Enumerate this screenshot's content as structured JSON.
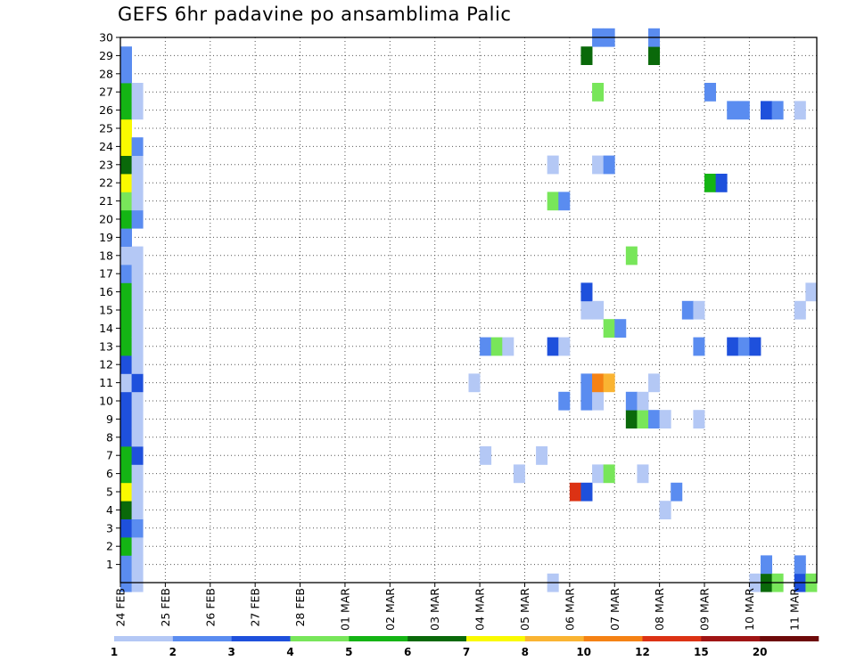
{
  "chart_data": {
    "type": "heatmap",
    "title": "GEFS 6hr padavine po ansamblima Palic",
    "xlabel": "",
    "ylabel": "",
    "x_tick_labels": [
      "24 FEB",
      "25 FEB",
      "26 FEB",
      "27 FEB",
      "28 FEB",
      "01 MAR",
      "02 MAR",
      "03 MAR",
      "04 MAR",
      "05 MAR",
      "06 MAR",
      "07 MAR",
      "08 MAR",
      "09 MAR",
      "10 MAR",
      "11 MAR"
    ],
    "y_tick_labels": [
      "1",
      "2",
      "3",
      "4",
      "5",
      "6",
      "7",
      "8",
      "9",
      "10",
      "11",
      "12",
      "13",
      "14",
      "15",
      "16",
      "17",
      "18",
      "19",
      "20",
      "21",
      "22",
      "23",
      "24",
      "25",
      "26",
      "27",
      "28",
      "29",
      "30"
    ],
    "y_axis_range": [
      0,
      30
    ],
    "time_steps": 62,
    "steps_per_day": 4,
    "members": 31,
    "grid": true,
    "colorbar": {
      "labels": [
        "1",
        "2",
        "3",
        "4",
        "5",
        "6",
        "7",
        "8",
        "10",
        "12",
        "15",
        "20"
      ],
      "colors": [
        "#b4c8f5",
        "#5a8cf0",
        "#1e50dc",
        "#78e65a",
        "#14b414",
        "#0a690a",
        "#fafa00",
        "#fab432",
        "#f58214",
        "#dc3214",
        "#a01414",
        "#6e0a0a"
      ]
    },
    "cells": [
      [
        0,
        0,
        2
      ],
      [
        0,
        1,
        2
      ],
      [
        0,
        2,
        5
      ],
      [
        0,
        3,
        3
      ],
      [
        0,
        4,
        6
      ],
      [
        0,
        5,
        7
      ],
      [
        0,
        6,
        5
      ],
      [
        0,
        7,
        5
      ],
      [
        0,
        8,
        3
      ],
      [
        0,
        9,
        3
      ],
      [
        0,
        10,
        3
      ],
      [
        0,
        11,
        1
      ],
      [
        0,
        12,
        3
      ],
      [
        0,
        13,
        5
      ],
      [
        0,
        14,
        5
      ],
      [
        0,
        15,
        5
      ],
      [
        0,
        16,
        5
      ],
      [
        0,
        17,
        2
      ],
      [
        0,
        18,
        1
      ],
      [
        0,
        19,
        2
      ],
      [
        0,
        20,
        5
      ],
      [
        0,
        21,
        4
      ],
      [
        0,
        22,
        7
      ],
      [
        0,
        23,
        6
      ],
      [
        0,
        24,
        7
      ],
      [
        0,
        25,
        7
      ],
      [
        0,
        26,
        5
      ],
      [
        0,
        27,
        5
      ],
      [
        0,
        28,
        2
      ],
      [
        0,
        29,
        2
      ],
      [
        1,
        0,
        1
      ],
      [
        1,
        1,
        1
      ],
      [
        1,
        2,
        1
      ],
      [
        1,
        3,
        2
      ],
      [
        1,
        4,
        1
      ],
      [
        1,
        5,
        1
      ],
      [
        1,
        6,
        1
      ],
      [
        1,
        7,
        3
      ],
      [
        1,
        8,
        1
      ],
      [
        1,
        9,
        1
      ],
      [
        1,
        10,
        1
      ],
      [
        1,
        11,
        3
      ],
      [
        1,
        12,
        1
      ],
      [
        1,
        13,
        1
      ],
      [
        1,
        14,
        1
      ],
      [
        1,
        15,
        1
      ],
      [
        1,
        16,
        1
      ],
      [
        1,
        17,
        1
      ],
      [
        1,
        18,
        1
      ],
      [
        1,
        20,
        2
      ],
      [
        1,
        21,
        1
      ],
      [
        1,
        22,
        1
      ],
      [
        1,
        23,
        1
      ],
      [
        1,
        24,
        2
      ],
      [
        1,
        26,
        1
      ],
      [
        1,
        27,
        1
      ],
      [
        31,
        11,
        1
      ],
      [
        32,
        13,
        2
      ],
      [
        32,
        7,
        1
      ],
      [
        33,
        13,
        4
      ],
      [
        34,
        13,
        1
      ],
      [
        35,
        6,
        1
      ],
      [
        37,
        7,
        1
      ],
      [
        38,
        0,
        1
      ],
      [
        38,
        13,
        3
      ],
      [
        38,
        21,
        4
      ],
      [
        38,
        23,
        1
      ],
      [
        39,
        10,
        2
      ],
      [
        39,
        13,
        1
      ],
      [
        39,
        21,
        2
      ],
      [
        40,
        5,
        10
      ],
      [
        41,
        5,
        3
      ],
      [
        41,
        10,
        2
      ],
      [
        41,
        11,
        2
      ],
      [
        41,
        15,
        1
      ],
      [
        41,
        16,
        3
      ],
      [
        41,
        29,
        6
      ],
      [
        42,
        6,
        1
      ],
      [
        42,
        10,
        1
      ],
      [
        42,
        11,
        9
      ],
      [
        42,
        15,
        1
      ],
      [
        42,
        23,
        1
      ],
      [
        42,
        27,
        4
      ],
      [
        42,
        30,
        2
      ],
      [
        43,
        6,
        4
      ],
      [
        43,
        11,
        8
      ],
      [
        43,
        14,
        4
      ],
      [
        43,
        23,
        2
      ],
      [
        43,
        30,
        2
      ],
      [
        44,
        14,
        2
      ],
      [
        45,
        9,
        6
      ],
      [
        45,
        10,
        2
      ],
      [
        45,
        18,
        4
      ],
      [
        46,
        9,
        4
      ],
      [
        46,
        10,
        1
      ],
      [
        46,
        6,
        1
      ],
      [
        47,
        9,
        2
      ],
      [
        47,
        11,
        1
      ],
      [
        47,
        29,
        6
      ],
      [
        47,
        30,
        2
      ],
      [
        48,
        4,
        1
      ],
      [
        48,
        9,
        1
      ],
      [
        49,
        5,
        2
      ],
      [
        50,
        15,
        2
      ],
      [
        51,
        9,
        1
      ],
      [
        51,
        15,
        1
      ],
      [
        51,
        13,
        2
      ],
      [
        52,
        22,
        5
      ],
      [
        52,
        27,
        2
      ],
      [
        53,
        22,
        3
      ],
      [
        54,
        13,
        3
      ],
      [
        54,
        26,
        2
      ],
      [
        55,
        13,
        2
      ],
      [
        55,
        26,
        2
      ],
      [
        56,
        0,
        1
      ],
      [
        56,
        13,
        3
      ],
      [
        57,
        0,
        6
      ],
      [
        57,
        1,
        2
      ],
      [
        57,
        26,
        3
      ],
      [
        58,
        0,
        4
      ],
      [
        58,
        26,
        2
      ],
      [
        60,
        0,
        3
      ],
      [
        60,
        1,
        2
      ],
      [
        60,
        15,
        1
      ],
      [
        60,
        26,
        1
      ],
      [
        61,
        0,
        4
      ],
      [
        61,
        16,
        1
      ]
    ]
  }
}
